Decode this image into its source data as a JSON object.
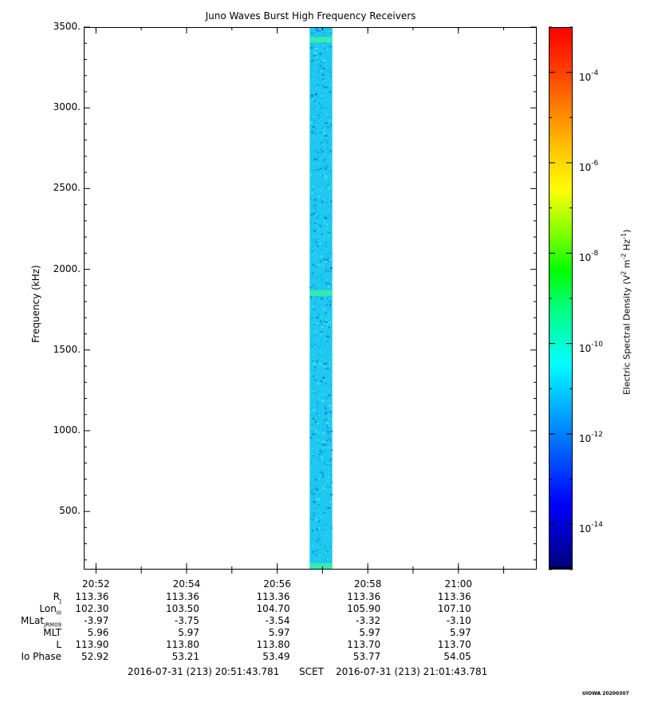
{
  "chart_data": {
    "type": "heatmap",
    "title": "Juno Waves Burst High Frequency Receivers",
    "ylabel": "Frequency (kHz)",
    "xlabel": "",
    "ylim": [
      140,
      3500
    ],
    "xlim": [
      "20:51:43.781",
      "21:01:43.781"
    ],
    "y_ticks": [
      "3500.",
      "3000.",
      "2500.",
      "2000.",
      "1500.",
      "1000.",
      "500."
    ],
    "x_ticks": [
      "20:52",
      "20:54",
      "20:56",
      "20:58",
      "21:00"
    ],
    "data_band": {
      "start": "20:56:43",
      "end": "20:57:13",
      "dominant_level_exp": -12,
      "enhanced_frequencies_khz": [
        140,
        1850,
        3420
      ]
    },
    "colorbar": {
      "label_text": "Electric Spectral Density (V",
      "label_sup1": "2",
      "label_mid": " m",
      "label_sup2": "-2",
      "label_hz": " Hz",
      "label_sup3": "-1",
      "label_end": ")",
      "ticks": [
        {
          "base": "10",
          "exp": "-4"
        },
        {
          "base": "10",
          "exp": "-6"
        },
        {
          "base": "10",
          "exp": "-8"
        },
        {
          "base": "10",
          "exp": "-10"
        },
        {
          "base": "10",
          "exp": "-12"
        },
        {
          "base": "10",
          "exp": "-14"
        }
      ],
      "range_exp": [
        -15,
        -3
      ]
    }
  },
  "ephemeris": {
    "labels": [
      {
        "main": "R",
        "sub": "J"
      },
      {
        "main": "Lon",
        "sub": "III"
      },
      {
        "main": "MLat",
        "sub": "JRM09"
      },
      {
        "main": "MLT",
        "sub": ""
      },
      {
        "main": "L",
        "sub": ""
      },
      {
        "main": "Io Phase",
        "sub": ""
      }
    ],
    "rows": [
      [
        "113.36",
        "113.36",
        "113.36",
        "113.36",
        "113.36"
      ],
      [
        "102.30",
        "103.50",
        "104.70",
        "105.90",
        "107.10"
      ],
      [
        "-3.97",
        "-3.75",
        "-3.54",
        "-3.32",
        "-3.10"
      ],
      [
        "5.96",
        "5.97",
        "5.97",
        "5.97",
        "5.97"
      ],
      [
        "113.90",
        "113.80",
        "113.80",
        "113.70",
        "113.70"
      ],
      [
        "52.92",
        "53.21",
        "53.49",
        "53.77",
        "54.05"
      ]
    ]
  },
  "footer": {
    "start": "2016-07-31 (213) 20:51:43.781",
    "mid": "SCET",
    "end": "2016-07-31 (213) 21:01:43.781"
  },
  "credit": "UIOWA 20200307"
}
